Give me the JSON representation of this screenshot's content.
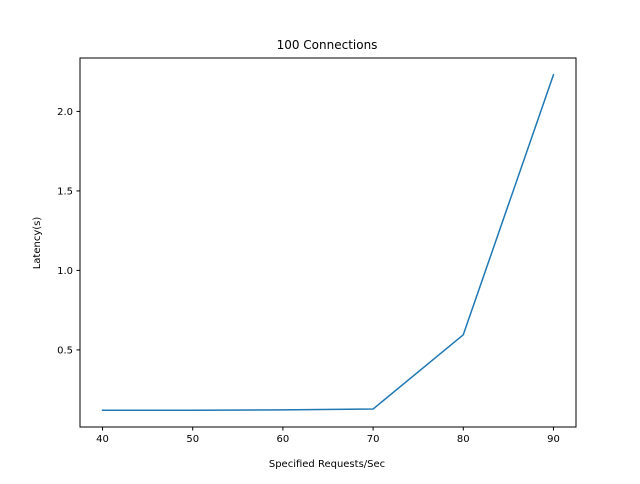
{
  "chart_data": {
    "type": "line",
    "title": "100 Connections",
    "xlabel": "Specified Requests/Sec",
    "ylabel": "Latency(s)",
    "x": [
      40,
      50,
      60,
      70,
      80,
      90
    ],
    "series": [
      {
        "values": [
          0.12,
          0.12,
          0.123,
          0.128,
          0.595,
          2.23
        ],
        "color": "#1f77b4"
      }
    ],
    "xlim": [
      37.5,
      92.5
    ],
    "ylim": [
      0.015,
      2.336
    ],
    "xticks": [
      40,
      50,
      60,
      70,
      80,
      90
    ],
    "xtick_labels": [
      "40",
      "50",
      "60",
      "70",
      "80",
      "90"
    ],
    "yticks": [
      0.5,
      1.0,
      1.5,
      2.0
    ],
    "ytick_labels": [
      "0.5",
      "1.0",
      "1.5",
      "2.0"
    ],
    "grid": false,
    "legend": "none"
  }
}
